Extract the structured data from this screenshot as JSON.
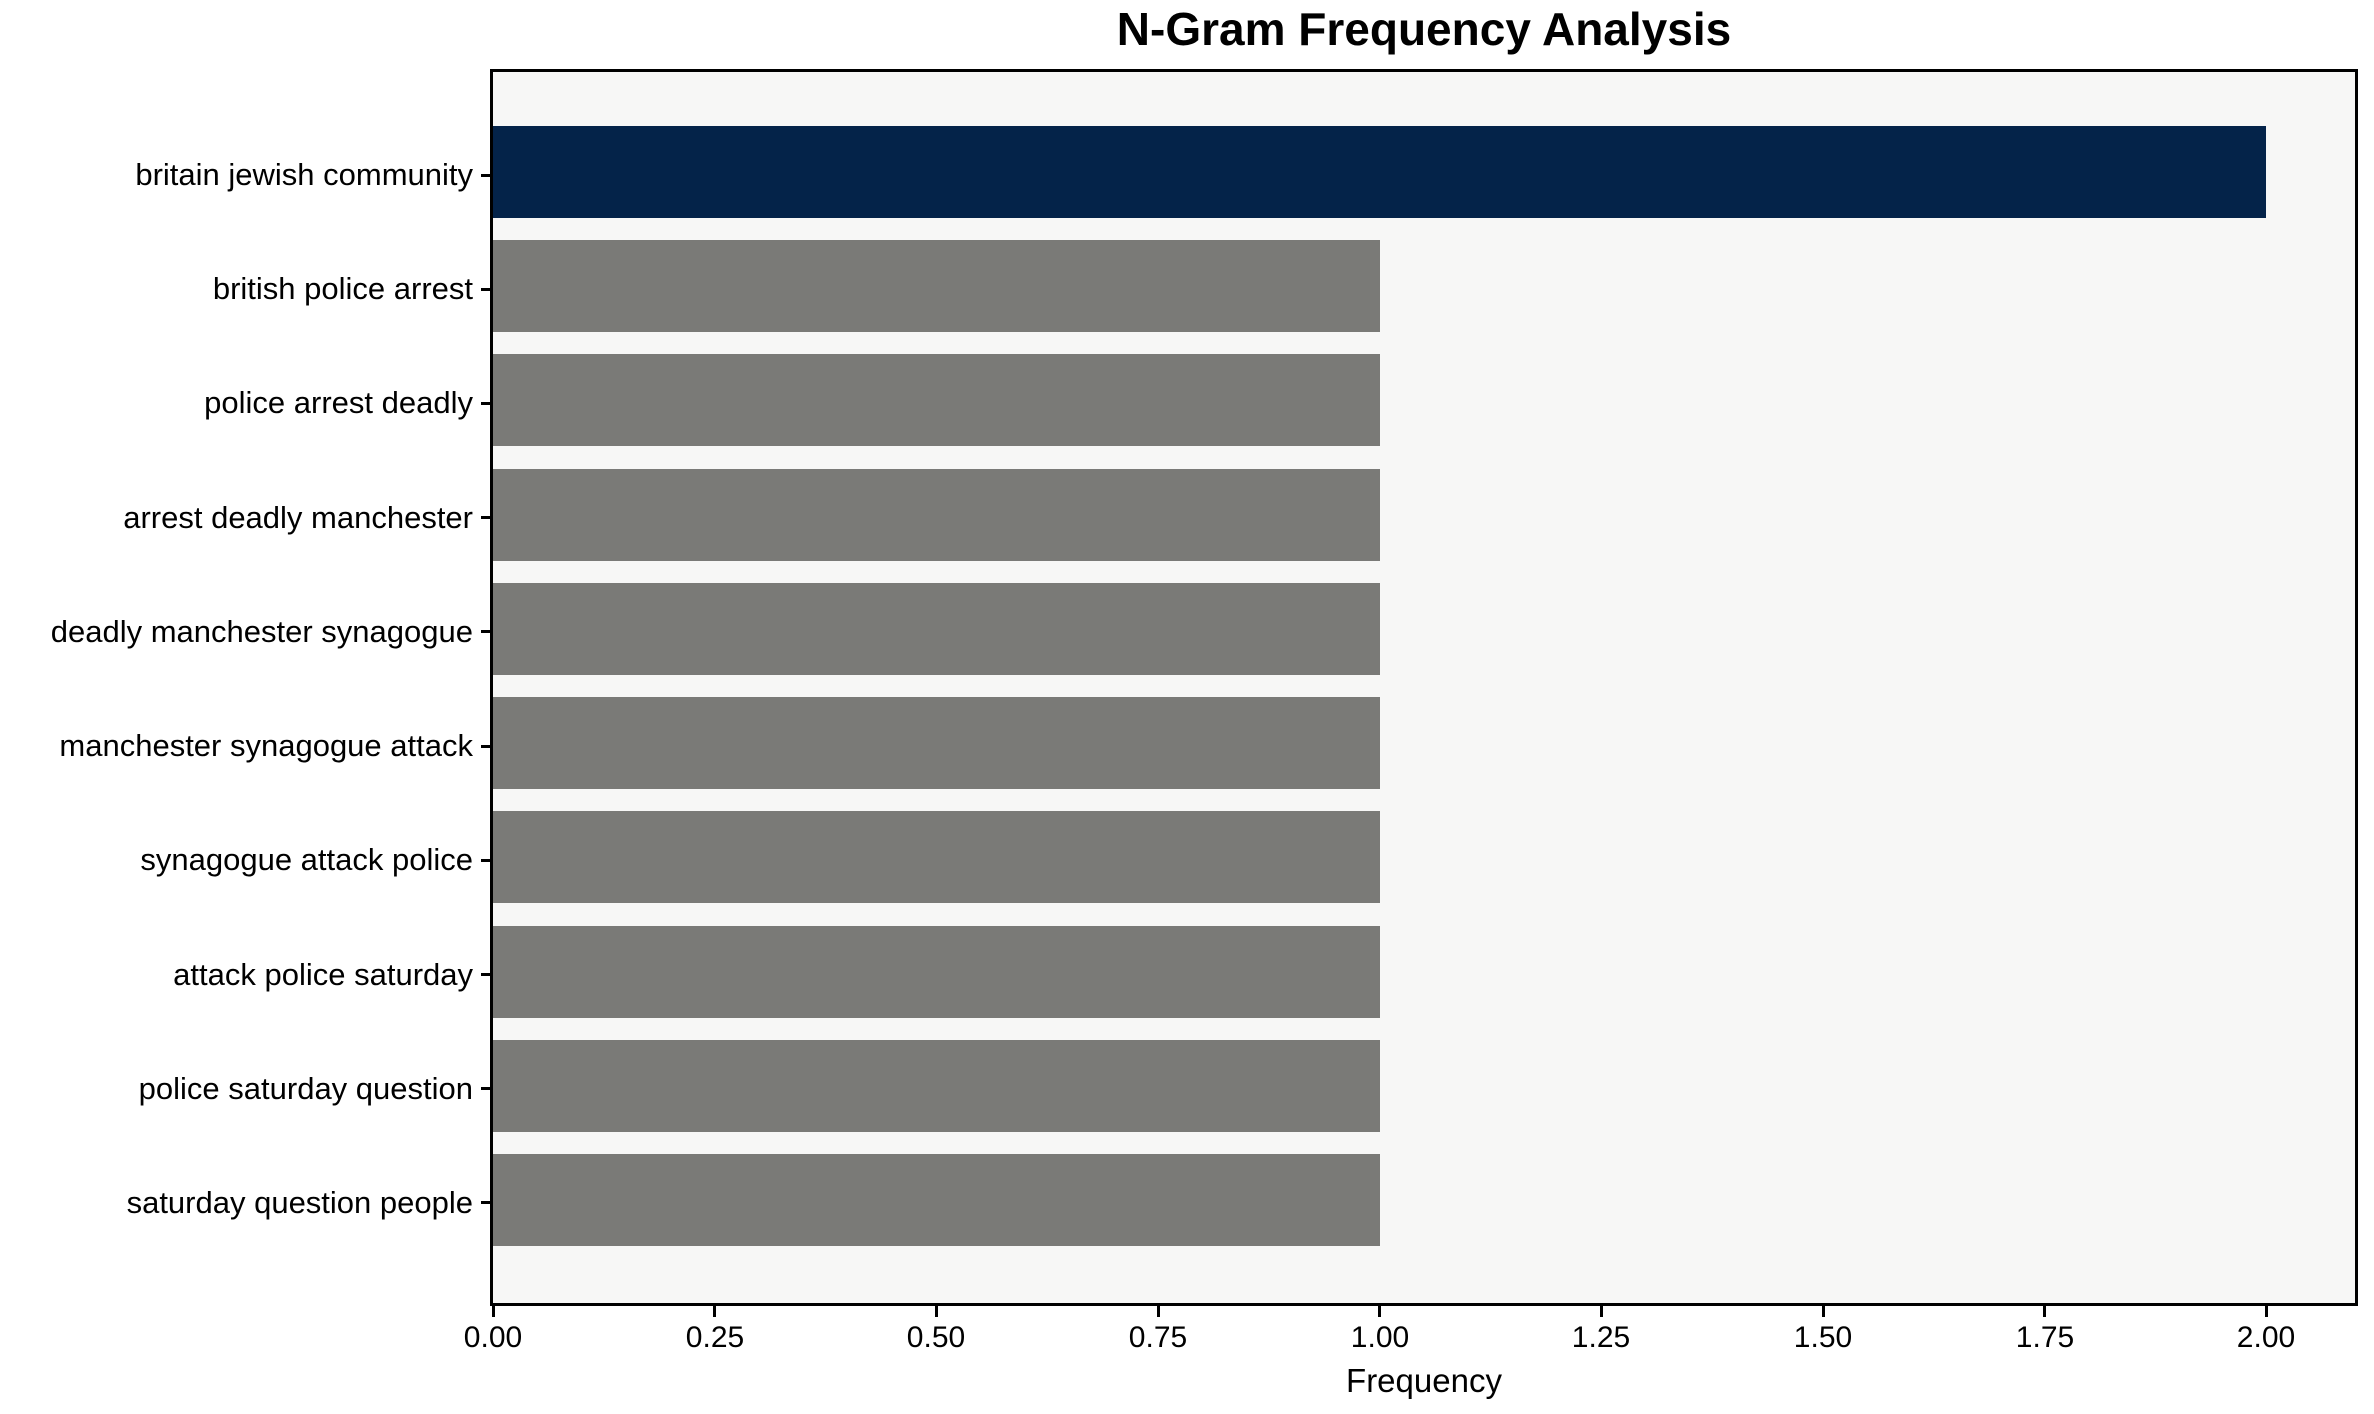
{
  "chart_data": {
    "type": "bar",
    "orientation": "horizontal",
    "title": "N-Gram Frequency Analysis",
    "xlabel": "Frequency",
    "ylabel": "",
    "categories": [
      "britain jewish community",
      "british police arrest",
      "police arrest deadly",
      "arrest deadly manchester",
      "deadly manchester synagogue",
      "manchester synagogue attack",
      "synagogue attack police",
      "attack police saturday",
      "police saturday question",
      "saturday question people"
    ],
    "values": [
      2,
      1,
      1,
      1,
      1,
      1,
      1,
      1,
      1,
      1
    ],
    "bar_colors": [
      "#042349",
      "#7a7a77",
      "#7a7a77",
      "#7a7a77",
      "#7a7a77",
      "#7a7a77",
      "#7a7a77",
      "#7a7a77",
      "#7a7a77",
      "#7a7a77"
    ],
    "xlim": [
      0,
      2.1
    ],
    "xticks": [
      {
        "value": 0.0,
        "label": "0.00"
      },
      {
        "value": 0.25,
        "label": "0.25"
      },
      {
        "value": 0.5,
        "label": "0.50"
      },
      {
        "value": 0.75,
        "label": "0.75"
      },
      {
        "value": 1.0,
        "label": "1.00"
      },
      {
        "value": 1.25,
        "label": "1.25"
      },
      {
        "value": 1.5,
        "label": "1.50"
      },
      {
        "value": 1.75,
        "label": "1.75"
      },
      {
        "value": 2.0,
        "label": "2.00"
      }
    ],
    "grid": false,
    "legend": null,
    "colors": {
      "highlight_bar": "#042349",
      "default_bar": "#7a7a77",
      "plot_background": "#f7f7f6",
      "figure_background": "#ffffff",
      "axis": "#000000",
      "text": "#000000"
    }
  }
}
